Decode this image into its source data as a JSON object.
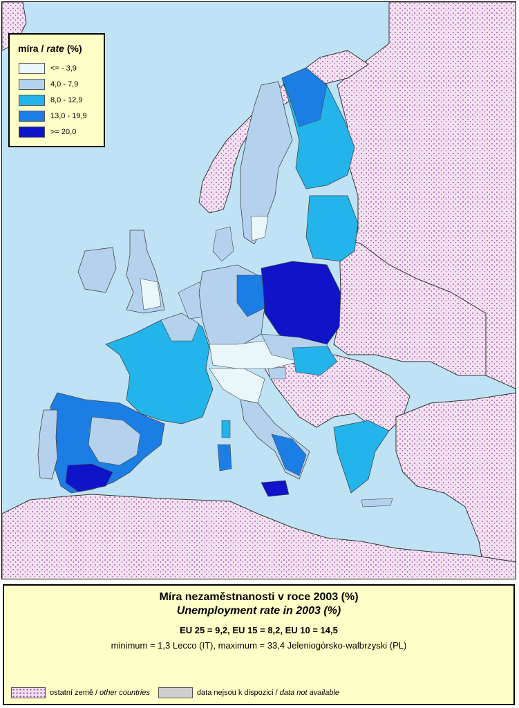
{
  "legend": {
    "title_main": "míra / ",
    "title_italic": "rate",
    "title_unit": " (%)",
    "classes": [
      {
        "label": "<= - 3,9",
        "color": "#e9f7fb"
      },
      {
        "label": "4,0 - 7,9",
        "color": "#b4d2ee"
      },
      {
        "label": "8,0 - 12,9",
        "color": "#22b4ea"
      },
      {
        "label": "13,0 - 19,9",
        "color": "#1c7ee4"
      },
      {
        "label": ">= 20,0",
        "color": "#0f14c8"
      }
    ]
  },
  "info": {
    "title": "Míra nezaměstnanosti v roce 2003 (%)",
    "subtitle": "Unemployment rate in 2003 (%)",
    "stats": "EU 25 = 9,2, EU 15 = 8,2, EU 10 = 14,5",
    "minmax": "minimum  = 1,3 Lecco (IT), maximum = 33,4 Jeleniogórsko-walbrzyski (PL)",
    "key_other_cz": "ostatní země / ",
    "key_other_en": "other countries",
    "key_na_cz": "data nejsou k dispozici / ",
    "key_na_en": "data not available"
  },
  "colors": {
    "sea": "#bfe3f5",
    "other_countries": "#f4e1f1",
    "other_dots": "#8b3a99",
    "not_available": "#cfcfcf",
    "panel_background": "#ffffc8"
  }
}
